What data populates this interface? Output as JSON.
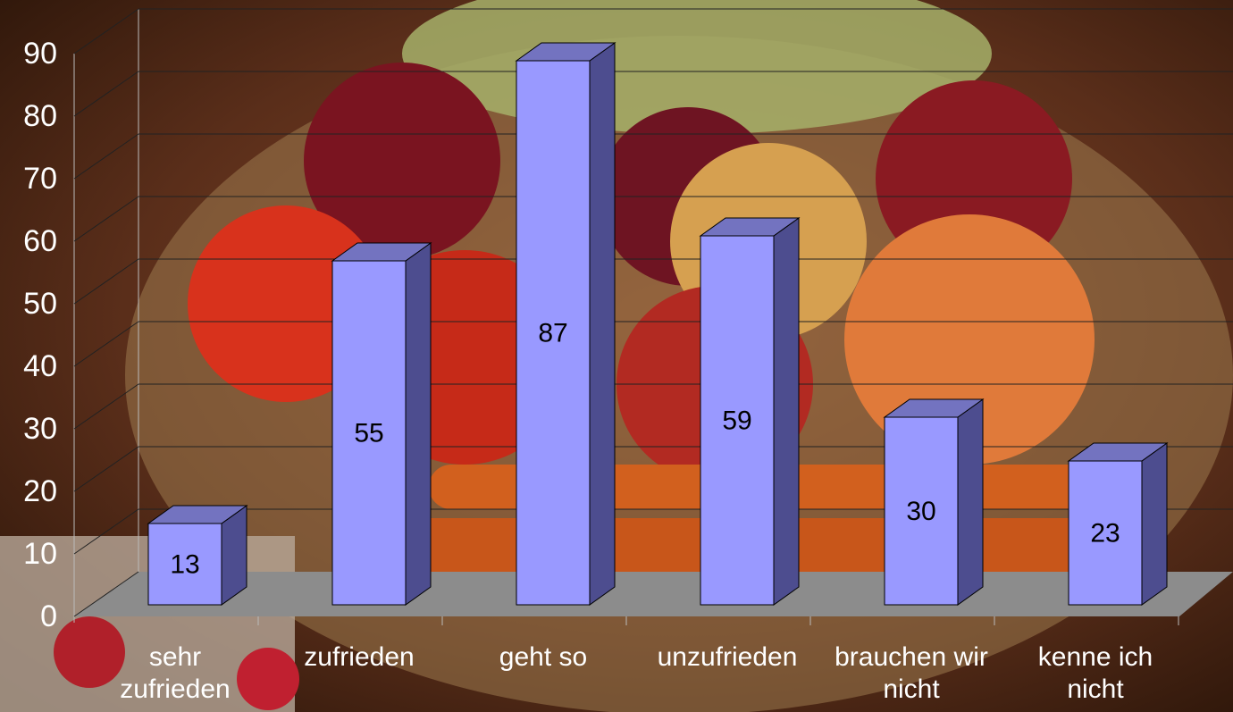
{
  "chart_data": {
    "type": "bar3d",
    "categories": [
      "sehr zufrieden",
      "zufrieden",
      "geht so",
      "unzufrieden",
      "brauchen wir nicht",
      "kenne ich nicht"
    ],
    "values": [
      13,
      55,
      87,
      59,
      30,
      23
    ],
    "color": "#9999ff",
    "ylim": [
      0,
      90
    ],
    "yticks": [
      0,
      10,
      20,
      30,
      40,
      50,
      60,
      70,
      80,
      90
    ],
    "grid": true
  }
}
